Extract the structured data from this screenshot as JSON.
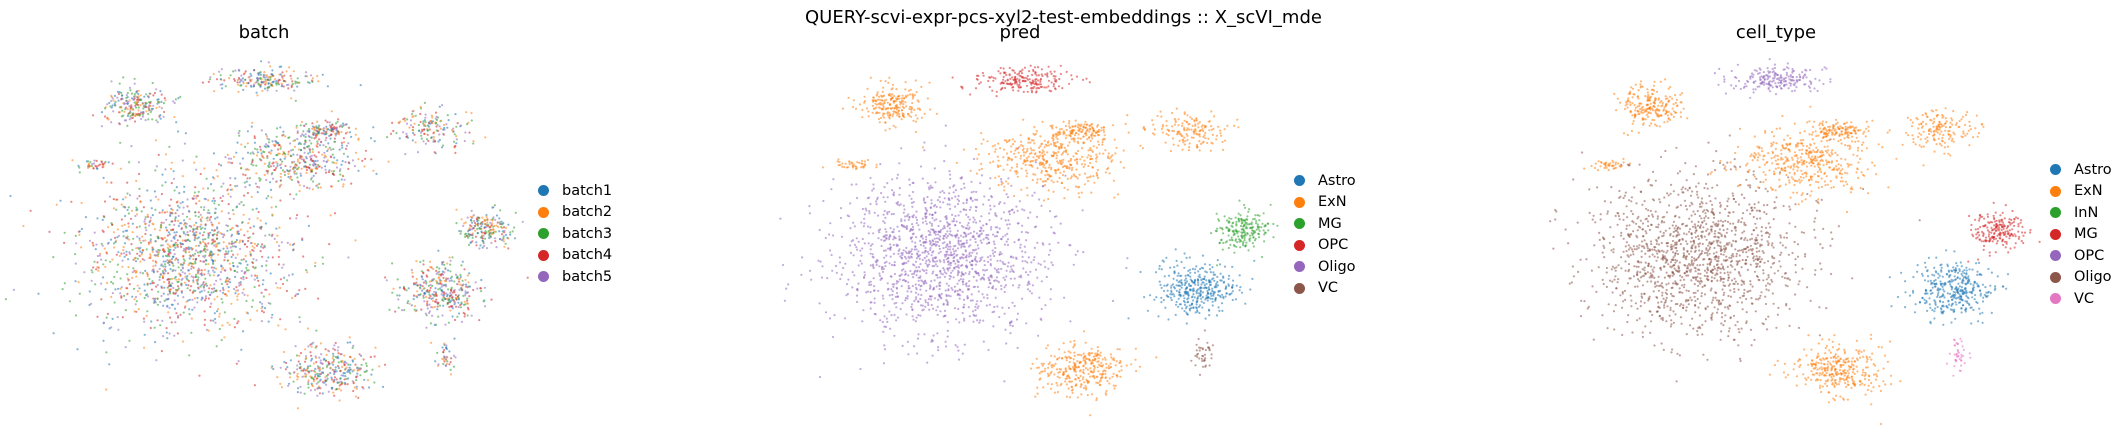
{
  "figure": {
    "suptitle": "QUERY-scvi-expr-pcs-xyl2-test-embeddings :: X_scVI_mde"
  },
  "chart_data": [
    {
      "type": "scatter",
      "title": "batch",
      "xlabel": "",
      "ylabel": "",
      "grid": false,
      "legend_position": "right",
      "series": [
        {
          "name": "batch1",
          "color": "#1f77b4"
        },
        {
          "name": "batch2",
          "color": "#ff7f0e"
        },
        {
          "name": "batch3",
          "color": "#2ca02c"
        },
        {
          "name": "batch4",
          "color": "#d62728"
        },
        {
          "name": "batch5",
          "color": "#9467bd"
        }
      ]
    },
    {
      "type": "scatter",
      "title": "pred",
      "xlabel": "",
      "ylabel": "",
      "grid": false,
      "legend_position": "right",
      "series": [
        {
          "name": "Astro",
          "color": "#1f77b4"
        },
        {
          "name": "ExN",
          "color": "#ff7f0e"
        },
        {
          "name": "MG",
          "color": "#2ca02c"
        },
        {
          "name": "OPC",
          "color": "#d62728"
        },
        {
          "name": "Oligo",
          "color": "#9467bd"
        },
        {
          "name": "VC",
          "color": "#8c564b"
        }
      ]
    },
    {
      "type": "scatter",
      "title": "cell_type",
      "xlabel": "",
      "ylabel": "",
      "grid": false,
      "legend_position": "right",
      "series": [
        {
          "name": "Astro",
          "color": "#1f77b4"
        },
        {
          "name": "ExN",
          "color": "#ff7f0e"
        },
        {
          "name": "InN",
          "color": "#2ca02c"
        },
        {
          "name": "MG",
          "color": "#d62728"
        },
        {
          "name": "OPC",
          "color": "#9467bd"
        },
        {
          "name": "Oligo",
          "color": "#8c564b"
        },
        {
          "name": "VC",
          "color": "#e377c2"
        }
      ]
    }
  ]
}
